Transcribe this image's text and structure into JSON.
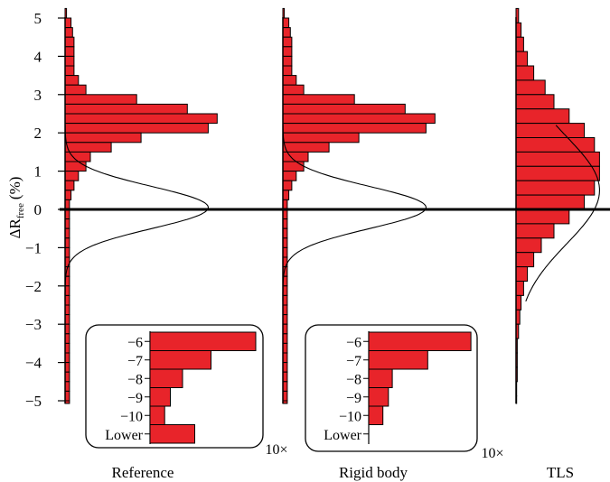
{
  "chart_data": {
    "type": "bar",
    "orientation": "horizontal",
    "ylabel": "ΔR",
    "ylabel_subscript": "free",
    "ylabel_unit": "(%)",
    "ylim": [
      -5.25,
      5.25
    ],
    "yticks": [
      "5",
      "4",
      "3",
      "2",
      "1",
      "0",
      "−1",
      "−2",
      "−3",
      "−4",
      "−5"
    ],
    "ytick_values": [
      5,
      4,
      3,
      2,
      1,
      0,
      -1,
      -2,
      -3,
      -4,
      -5
    ],
    "bin_edges": [
      5.25,
      4.75,
      4.25,
      3.75,
      3.25,
      2.75,
      2.25,
      1.75,
      1.25,
      0.75,
      0.25,
      -0.25,
      -0.75,
      -1.25,
      -1.75,
      -2.25,
      -2.75,
      -3.25,
      -3.75,
      -4.25,
      -4.75,
      -5.25
    ],
    "panels": [
      {
        "label": "Reference",
        "values": [
          1,
          4,
          5,
          6,
          6,
          6,
          6,
          9,
          14,
          48,
          82,
          102,
          96,
          51,
          31,
          17,
          14,
          9,
          6,
          4,
          3,
          3,
          3,
          3,
          3,
          3,
          3,
          3,
          3,
          3,
          3,
          3,
          3,
          3,
          3,
          3,
          3,
          3,
          3,
          3,
          3,
          3
        ],
        "bin_width": 0.25,
        "curve": {
          "mean": 0.05,
          "sd": 0.55,
          "peak": 96
        },
        "inset": {
          "categories": [
            "−6",
            "−7",
            "−8",
            "−9",
            "−10",
            "Lower"
          ],
          "values": [
            13,
            7.5,
            4,
            2.5,
            1.8,
            5.5
          ],
          "multiplier": "10×"
        }
      },
      {
        "label": "Rigid body",
        "values": [
          1,
          4,
          5,
          6,
          6,
          6,
          6,
          9,
          14,
          48,
          82,
          102,
          96,
          51,
          31,
          17,
          14,
          9,
          6,
          4,
          3,
          3,
          3,
          3,
          3,
          3,
          3,
          3,
          3,
          3,
          3,
          3,
          3,
          3,
          3,
          3,
          3,
          3,
          3,
          3,
          3,
          3
        ],
        "bin_width": 0.25,
        "curve": {
          "mean": 0.05,
          "sd": 0.55,
          "peak": 96
        },
        "inset": {
          "categories": [
            "−6",
            "−7",
            "−8",
            "−9",
            "−10",
            "Lower"
          ],
          "values": [
            13,
            7.5,
            3,
            2.5,
            1.8,
            0
          ],
          "multiplier": "10×"
        }
      },
      {
        "label": "TLS",
        "values": [
          2,
          4,
          6,
          9,
          14,
          23,
          30,
          42,
          54,
          62,
          66,
          66,
          62,
          54,
          42,
          30,
          20,
          14,
          9,
          6,
          4,
          3,
          2,
          1,
          1,
          1,
          0.5,
          0.5
        ],
        "bin_width": 0.375,
        "curve": {
          "mean": 0.5,
          "sd": 1.4,
          "peak": 66
        }
      }
    ]
  }
}
